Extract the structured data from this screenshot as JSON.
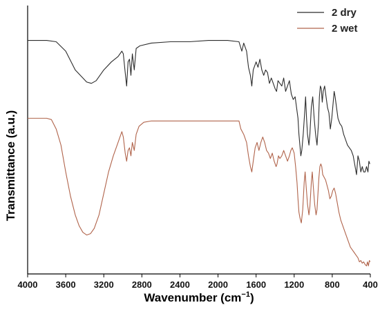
{
  "chart_data": {
    "type": "line",
    "title": "",
    "xlabel": "Wavenumber (cm",
    "xlabel_sup": "−1",
    "xlabel_close": ")",
    "ylabel": "Transmittance (a.u.)",
    "xlim": [
      4000,
      400
    ],
    "ylim": [
      0,
      100
    ],
    "x_reversed": true,
    "y_tick_labels_shown": false,
    "x_ticks": [
      4000,
      3600,
      3200,
      2800,
      2400,
      2000,
      1600,
      1200,
      800,
      400
    ],
    "x_tick_labels": [
      "4000",
      "3600",
      "3200",
      "2800",
      "2400",
      "2000",
      "1600",
      "1200",
      "800",
      "400"
    ],
    "legend_position": "top-right",
    "grid": false,
    "series": [
      {
        "name": "2 dry",
        "color": "#2b2b2b",
        "points": [
          [
            4000,
            87
          ],
          [
            3800,
            87
          ],
          [
            3700,
            86.5
          ],
          [
            3600,
            83
          ],
          [
            3500,
            76
          ],
          [
            3420,
            73
          ],
          [
            3380,
            71.5
          ],
          [
            3330,
            71
          ],
          [
            3280,
            72
          ],
          [
            3200,
            76
          ],
          [
            3120,
            79
          ],
          [
            3050,
            81
          ],
          [
            3010,
            83
          ],
          [
            2995,
            82
          ],
          [
            2975,
            75
          ],
          [
            2960,
            70
          ],
          [
            2945,
            79
          ],
          [
            2930,
            80
          ],
          [
            2915,
            74
          ],
          [
            2900,
            82
          ],
          [
            2880,
            76
          ],
          [
            2860,
            84
          ],
          [
            2820,
            85
          ],
          [
            2700,
            86
          ],
          [
            2500,
            86.5
          ],
          [
            2300,
            86.5
          ],
          [
            2100,
            87
          ],
          [
            2000,
            87
          ],
          [
            1900,
            87
          ],
          [
            1780,
            86.5
          ],
          [
            1750,
            83
          ],
          [
            1730,
            86
          ],
          [
            1700,
            83
          ],
          [
            1680,
            77
          ],
          [
            1660,
            74
          ],
          [
            1645,
            70
          ],
          [
            1630,
            76
          ],
          [
            1600,
            79
          ],
          [
            1580,
            77
          ],
          [
            1560,
            80
          ],
          [
            1540,
            76
          ],
          [
            1520,
            74
          ],
          [
            1500,
            76
          ],
          [
            1480,
            75
          ],
          [
            1460,
            71
          ],
          [
            1440,
            73
          ],
          [
            1420,
            71
          ],
          [
            1400,
            69
          ],
          [
            1385,
            68
          ],
          [
            1370,
            72
          ],
          [
            1350,
            71
          ],
          [
            1330,
            70
          ],
          [
            1310,
            73
          ],
          [
            1290,
            68
          ],
          [
            1270,
            70
          ],
          [
            1250,
            72
          ],
          [
            1230,
            67
          ],
          [
            1210,
            65
          ],
          [
            1190,
            66
          ],
          [
            1175,
            62
          ],
          [
            1160,
            58
          ],
          [
            1150,
            52
          ],
          [
            1140,
            48
          ],
          [
            1130,
            44
          ],
          [
            1120,
            46
          ],
          [
            1105,
            52
          ],
          [
            1090,
            60
          ],
          [
            1080,
            66
          ],
          [
            1070,
            58
          ],
          [
            1060,
            52
          ],
          [
            1045,
            48
          ],
          [
            1035,
            52
          ],
          [
            1020,
            62
          ],
          [
            1005,
            66
          ],
          [
            990,
            58
          ],
          [
            975,
            52
          ],
          [
            960,
            48
          ],
          [
            945,
            56
          ],
          [
            935,
            66
          ],
          [
            925,
            70
          ],
          [
            915,
            69
          ],
          [
            905,
            64
          ],
          [
            895,
            68
          ],
          [
            880,
            70
          ],
          [
            865,
            66
          ],
          [
            850,
            62
          ],
          [
            835,
            60
          ],
          [
            820,
            54
          ],
          [
            805,
            58
          ],
          [
            790,
            64
          ],
          [
            780,
            68
          ],
          [
            770,
            66
          ],
          [
            755,
            62
          ],
          [
            740,
            58
          ],
          [
            720,
            56
          ],
          [
            700,
            55
          ],
          [
            680,
            52
          ],
          [
            660,
            50
          ],
          [
            640,
            48
          ],
          [
            620,
            47
          ],
          [
            600,
            46
          ],
          [
            580,
            44
          ],
          [
            560,
            40
          ],
          [
            545,
            37
          ],
          [
            530,
            44
          ],
          [
            515,
            42
          ],
          [
            500,
            38
          ],
          [
            485,
            40
          ],
          [
            470,
            38
          ],
          [
            455,
            38
          ],
          [
            440,
            40
          ],
          [
            425,
            38
          ],
          [
            415,
            42
          ],
          [
            405,
            41
          ]
        ]
      },
      {
        "name": "2 wet",
        "color": "#b0634a",
        "points": [
          [
            4000,
            58
          ],
          [
            3800,
            58
          ],
          [
            3750,
            57.5
          ],
          [
            3700,
            54
          ],
          [
            3650,
            48
          ],
          [
            3600,
            38
          ],
          [
            3550,
            29
          ],
          [
            3500,
            22
          ],
          [
            3460,
            18
          ],
          [
            3420,
            15.5
          ],
          [
            3380,
            14.5
          ],
          [
            3340,
            15
          ],
          [
            3300,
            17
          ],
          [
            3250,
            22
          ],
          [
            3200,
            30
          ],
          [
            3150,
            38
          ],
          [
            3100,
            44
          ],
          [
            3060,
            48
          ],
          [
            3030,
            51
          ],
          [
            3010,
            53
          ],
          [
            2995,
            51
          ],
          [
            2975,
            45
          ],
          [
            2960,
            42
          ],
          [
            2945,
            46
          ],
          [
            2930,
            47
          ],
          [
            2915,
            44
          ],
          [
            2900,
            49
          ],
          [
            2880,
            46
          ],
          [
            2860,
            52
          ],
          [
            2830,
            55
          ],
          [
            2780,
            56.5
          ],
          [
            2700,
            57
          ],
          [
            2500,
            57
          ],
          [
            2300,
            57
          ],
          [
            2100,
            57
          ],
          [
            2000,
            57
          ],
          [
            1900,
            57
          ],
          [
            1780,
            57
          ],
          [
            1760,
            54
          ],
          [
            1730,
            52
          ],
          [
            1700,
            49
          ],
          [
            1680,
            44
          ],
          [
            1660,
            40
          ],
          [
            1645,
            38
          ],
          [
            1630,
            42
          ],
          [
            1610,
            47
          ],
          [
            1590,
            49
          ],
          [
            1570,
            46
          ],
          [
            1550,
            49
          ],
          [
            1530,
            51
          ],
          [
            1510,
            49
          ],
          [
            1490,
            46
          ],
          [
            1470,
            45
          ],
          [
            1450,
            43
          ],
          [
            1430,
            45
          ],
          [
            1410,
            42
          ],
          [
            1390,
            40
          ],
          [
            1380,
            41
          ],
          [
            1365,
            44
          ],
          [
            1350,
            43
          ],
          [
            1330,
            44
          ],
          [
            1310,
            46
          ],
          [
            1290,
            44
          ],
          [
            1270,
            42
          ],
          [
            1250,
            44
          ],
          [
            1235,
            46
          ],
          [
            1220,
            47
          ],
          [
            1200,
            45
          ],
          [
            1185,
            40
          ],
          [
            1170,
            34
          ],
          [
            1160,
            28
          ],
          [
            1150,
            23
          ],
          [
            1140,
            21
          ],
          [
            1125,
            19
          ],
          [
            1110,
            24
          ],
          [
            1095,
            34
          ],
          [
            1085,
            38
          ],
          [
            1075,
            33
          ],
          [
            1060,
            26
          ],
          [
            1045,
            22
          ],
          [
            1035,
            25
          ],
          [
            1020,
            34
          ],
          [
            1010,
            38
          ],
          [
            1000,
            33
          ],
          [
            985,
            26
          ],
          [
            970,
            22
          ],
          [
            960,
            24
          ],
          [
            950,
            30
          ],
          [
            940,
            36
          ],
          [
            930,
            40
          ],
          [
            920,
            41
          ],
          [
            910,
            40
          ],
          [
            900,
            37
          ],
          [
            885,
            36
          ],
          [
            870,
            35
          ],
          [
            855,
            33
          ],
          [
            840,
            31
          ],
          [
            825,
            28
          ],
          [
            810,
            29
          ],
          [
            795,
            31
          ],
          [
            780,
            32
          ],
          [
            765,
            30
          ],
          [
            750,
            27
          ],
          [
            730,
            23
          ],
          [
            710,
            20
          ],
          [
            690,
            18
          ],
          [
            670,
            16
          ],
          [
            650,
            14
          ],
          [
            630,
            12
          ],
          [
            610,
            10
          ],
          [
            590,
            9
          ],
          [
            570,
            8
          ],
          [
            550,
            7
          ],
          [
            530,
            6
          ],
          [
            515,
            4.5
          ],
          [
            500,
            5
          ],
          [
            485,
            4
          ],
          [
            470,
            4.5
          ],
          [
            455,
            3.5
          ],
          [
            440,
            3
          ],
          [
            430,
            4.5
          ],
          [
            420,
            3
          ],
          [
            410,
            5
          ],
          [
            402,
            4.5
          ]
        ]
      }
    ]
  }
}
